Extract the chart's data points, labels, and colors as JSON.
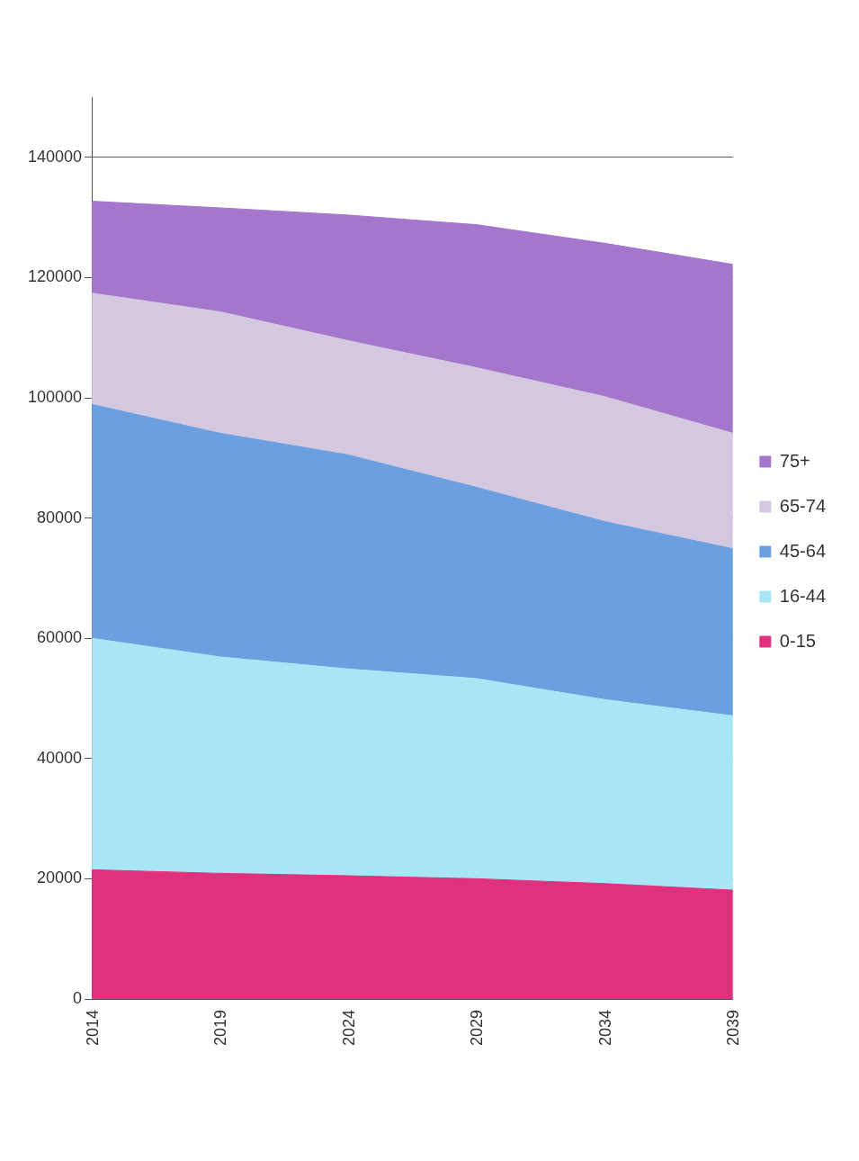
{
  "chart_data": {
    "type": "area",
    "stacked": true,
    "x": [
      2014,
      2019,
      2024,
      2029,
      2034,
      2039
    ],
    "xlim": [
      2014,
      2039
    ],
    "xticks": [
      2014,
      2019,
      2024,
      2029,
      2034,
      2039
    ],
    "ylim": [
      0,
      150000
    ],
    "yticks": [
      0,
      20000,
      40000,
      60000,
      80000,
      100000,
      120000,
      140000
    ],
    "grid": "y",
    "legend": "right",
    "marker": "none",
    "series": [
      {
        "name": "0-15",
        "color": "#e0317e",
        "values": [
          21500,
          20900,
          20500,
          20000,
          19200,
          18100
        ]
      },
      {
        "name": "16-44",
        "color": "#a8e6f5",
        "values": [
          38500,
          36000,
          34400,
          33300,
          30600,
          29000
        ]
      },
      {
        "name": "45-64",
        "color": "#6a9fe0",
        "values": [
          38900,
          37200,
          35600,
          31800,
          29600,
          27800
        ]
      },
      {
        "name": "65-74",
        "color": "#d4c8e0",
        "values": [
          18500,
          20200,
          19000,
          19900,
          20800,
          19200
        ]
      },
      {
        "name": "75+",
        "color": "#a477cc",
        "values": [
          15300,
          17300,
          20900,
          23800,
          25500,
          28100
        ]
      }
    ]
  }
}
